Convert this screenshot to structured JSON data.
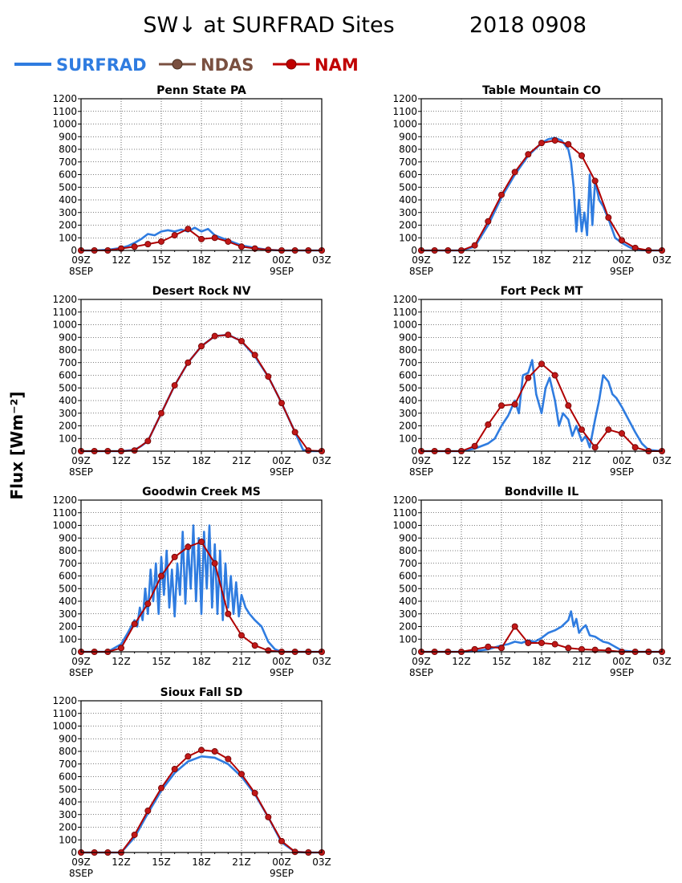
{
  "title": "SW↓ at SURFRAD Sites",
  "date": "2018 0908",
  "ylabel": "Flux [Wm⁻²]",
  "legend": [
    {
      "name": "SURFRAD",
      "color": "#2f7ce0",
      "marker": "none"
    },
    {
      "name": "NDAS",
      "color": "#7a5040",
      "marker": "circle"
    },
    {
      "name": "NAM",
      "color": "#c00000",
      "marker": "circle"
    }
  ],
  "colors": {
    "surfrad": "#2f7ce0",
    "nam": "#b00000",
    "nam_marker": "#c01818",
    "grid": "#000000"
  },
  "chart_data": [
    {
      "type": "line",
      "title": "Penn State PA",
      "x_tick_labels": [
        "09Z",
        "12Z",
        "15Z",
        "18Z",
        "21Z",
        "00Z",
        "03Z"
      ],
      "x_date_labels": [
        "8SEP",
        "9SEP"
      ],
      "y_ticks": [
        0,
        100,
        200,
        300,
        400,
        500,
        600,
        700,
        800,
        900,
        1000,
        1100,
        1200
      ],
      "xlim": [
        0,
        18
      ],
      "ylim": [
        0,
        1200
      ],
      "grid": true,
      "series": [
        {
          "name": "SURFRAD",
          "x": [
            0,
            1,
            2,
            3,
            3.5,
            4,
            4.5,
            5,
            5.5,
            6,
            6.5,
            7,
            7.5,
            8,
            8.5,
            9,
            9.5,
            10,
            10.5,
            11,
            11.5,
            12,
            13,
            14,
            15,
            16,
            17,
            18
          ],
          "y": [
            0,
            0,
            5,
            20,
            35,
            60,
            90,
            130,
            120,
            150,
            160,
            150,
            165,
            150,
            180,
            150,
            170,
            120,
            100,
            80,
            60,
            40,
            20,
            5,
            0,
            0,
            0,
            0
          ]
        },
        {
          "name": "NAM",
          "x": [
            0,
            1,
            2,
            3,
            4,
            5,
            6,
            7,
            8,
            9,
            10,
            11,
            12,
            13,
            14,
            15,
            16,
            17,
            18
          ],
          "y": [
            0,
            0,
            0,
            15,
            30,
            50,
            70,
            120,
            170,
            90,
            100,
            70,
            30,
            15,
            5,
            0,
            0,
            0,
            0
          ]
        }
      ]
    },
    {
      "type": "line",
      "title": "Table Mountain CO",
      "x_tick_labels": [
        "09Z",
        "12Z",
        "15Z",
        "18Z",
        "21Z",
        "00Z",
        "03Z"
      ],
      "x_date_labels": [
        "8SEP",
        "9SEP"
      ],
      "y_ticks": [
        0,
        100,
        200,
        300,
        400,
        500,
        600,
        700,
        800,
        900,
        1000,
        1100,
        1200
      ],
      "xlim": [
        0,
        18
      ],
      "ylim": [
        0,
        1200
      ],
      "grid": true,
      "series": [
        {
          "name": "SURFRAD",
          "x": [
            0,
            1,
            2,
            3,
            4,
            5,
            6,
            7,
            8,
            9,
            9.5,
            10,
            10.5,
            11,
            11.2,
            11.4,
            11.6,
            11.8,
            12,
            12.2,
            12.4,
            12.6,
            12.8,
            13,
            13.3,
            13.6,
            14,
            14.5,
            15,
            15.5,
            16,
            17,
            18
          ],
          "y": [
            0,
            0,
            0,
            0,
            30,
            200,
            420,
            600,
            750,
            850,
            880,
            890,
            870,
            800,
            700,
            500,
            150,
            400,
            150,
            300,
            120,
            600,
            200,
            550,
            400,
            350,
            250,
            100,
            60,
            30,
            5,
            0,
            0
          ]
        },
        {
          "name": "NAM",
          "x": [
            0,
            1,
            2,
            3,
            4,
            5,
            6,
            7,
            8,
            9,
            10,
            11,
            12,
            13,
            14,
            15,
            16,
            17,
            18
          ],
          "y": [
            0,
            0,
            0,
            0,
            40,
            230,
            440,
            620,
            760,
            850,
            870,
            840,
            750,
            550,
            260,
            80,
            20,
            0,
            0
          ]
        }
      ]
    },
    {
      "type": "line",
      "title": "Desert Rock NV",
      "x_tick_labels": [
        "09Z",
        "12Z",
        "15Z",
        "18Z",
        "21Z",
        "00Z",
        "03Z"
      ],
      "x_date_labels": [
        "8SEP",
        "9SEP"
      ],
      "y_ticks": [
        0,
        100,
        200,
        300,
        400,
        500,
        600,
        700,
        800,
        900,
        1000,
        1100,
        1200
      ],
      "xlim": [
        0,
        18
      ],
      "ylim": [
        0,
        1200
      ],
      "grid": true,
      "series": [
        {
          "name": "SURFRAD",
          "x": [
            0,
            1,
            2,
            3,
            4,
            4.5,
            5,
            6,
            7,
            8,
            9,
            10,
            11,
            12,
            13,
            14,
            15,
            16,
            16.3,
            16.6,
            17,
            18
          ],
          "y": [
            0,
            0,
            0,
            0,
            10,
            40,
            80,
            300,
            520,
            700,
            830,
            910,
            920,
            870,
            750,
            590,
            380,
            150,
            80,
            10,
            0,
            0
          ]
        },
        {
          "name": "NAM",
          "x": [
            0,
            1,
            2,
            3,
            4,
            5,
            6,
            7,
            8,
            9,
            10,
            11,
            12,
            13,
            14,
            15,
            16,
            17,
            18
          ],
          "y": [
            0,
            0,
            0,
            0,
            5,
            80,
            300,
            520,
            700,
            830,
            910,
            920,
            870,
            760,
            590,
            380,
            150,
            5,
            0
          ]
        }
      ]
    },
    {
      "type": "line",
      "title": "Fort Peck MT",
      "x_tick_labels": [
        "09Z",
        "12Z",
        "15Z",
        "18Z",
        "21Z",
        "00Z",
        "03Z"
      ],
      "x_date_labels": [
        "8SEP",
        "9SEP"
      ],
      "y_ticks": [
        0,
        100,
        200,
        300,
        400,
        500,
        600,
        700,
        800,
        900,
        1000,
        1100,
        1200
      ],
      "xlim": [
        0,
        18
      ],
      "ylim": [
        0,
        1200
      ],
      "grid": true,
      "series": [
        {
          "name": "SURFRAD",
          "x": [
            0,
            1,
            2,
            3,
            4,
            5,
            5.5,
            6,
            6.5,
            7,
            7.3,
            7.6,
            8,
            8.3,
            8.6,
            9,
            9.3,
            9.6,
            10,
            10.3,
            10.6,
            11,
            11.3,
            11.6,
            12,
            12.3,
            12.6,
            13,
            13.3,
            13.6,
            14,
            14.3,
            14.6,
            15,
            15.5,
            16,
            16.5,
            17,
            18
          ],
          "y": [
            0,
            0,
            0,
            0,
            20,
            60,
            100,
            200,
            280,
            400,
            300,
            600,
            620,
            720,
            450,
            300,
            500,
            580,
            400,
            200,
            300,
            250,
            120,
            200,
            80,
            120,
            30,
            250,
            400,
            600,
            550,
            450,
            420,
            350,
            250,
            150,
            60,
            10,
            0
          ]
        },
        {
          "name": "NAM",
          "x": [
            0,
            1,
            2,
            3,
            4,
            5,
            6,
            7,
            8,
            9,
            10,
            11,
            12,
            13,
            14,
            15,
            16,
            17,
            18
          ],
          "y": [
            0,
            0,
            0,
            0,
            40,
            210,
            360,
            370,
            580,
            690,
            600,
            360,
            170,
            30,
            170,
            140,
            30,
            0,
            0
          ]
        }
      ]
    },
    {
      "type": "line",
      "title": "Goodwin Creek MS",
      "x_tick_labels": [
        "09Z",
        "12Z",
        "15Z",
        "18Z",
        "21Z",
        "00Z",
        "03Z"
      ],
      "x_date_labels": [
        "8SEP",
        "9SEP"
      ],
      "y_ticks": [
        0,
        100,
        200,
        300,
        400,
        500,
        600,
        700,
        800,
        900,
        1000,
        1100,
        1200
      ],
      "xlim": [
        0,
        18
      ],
      "ylim": [
        0,
        1200
      ],
      "grid": true,
      "series": [
        {
          "name": "SURFRAD",
          "x": [
            0,
            1,
            2,
            3,
            3.5,
            4,
            4.2,
            4.4,
            4.6,
            4.8,
            5,
            5.2,
            5.4,
            5.6,
            5.8,
            6,
            6.2,
            6.4,
            6.6,
            6.8,
            7,
            7.2,
            7.4,
            7.6,
            7.8,
            8,
            8.2,
            8.4,
            8.6,
            8.8,
            9,
            9.2,
            9.4,
            9.6,
            9.8,
            10,
            10.2,
            10.4,
            10.6,
            10.8,
            11,
            11.2,
            11.4,
            11.6,
            11.8,
            12,
            12.3,
            12.6,
            13,
            13.5,
            14,
            14.5,
            15,
            16,
            17,
            18
          ],
          "y": [
            0,
            0,
            0,
            60,
            150,
            250,
            200,
            350,
            250,
            500,
            300,
            650,
            400,
            700,
            300,
            750,
            450,
            800,
            350,
            650,
            280,
            700,
            450,
            950,
            380,
            850,
            500,
            1000,
            400,
            900,
            300,
            950,
            500,
            1000,
            350,
            850,
            300,
            800,
            250,
            700,
            350,
            600,
            300,
            550,
            280,
            450,
            350,
            300,
            250,
            200,
            80,
            20,
            0,
            0,
            0,
            0
          ]
        },
        {
          "name": "NAM",
          "x": [
            0,
            1,
            2,
            3,
            4,
            5,
            6,
            7,
            8,
            9,
            10,
            11,
            12,
            13,
            14,
            15,
            16,
            17,
            18
          ],
          "y": [
            0,
            0,
            0,
            30,
            220,
            380,
            600,
            750,
            830,
            870,
            700,
            300,
            130,
            50,
            10,
            0,
            0,
            0,
            0
          ]
        }
      ]
    },
    {
      "type": "line",
      "title": "Bondville IL",
      "x_tick_labels": [
        "09Z",
        "12Z",
        "15Z",
        "18Z",
        "21Z",
        "00Z",
        "03Z"
      ],
      "x_date_labels": [
        "8SEP",
        "9SEP"
      ],
      "y_ticks": [
        0,
        100,
        200,
        300,
        400,
        500,
        600,
        700,
        800,
        900,
        1000,
        1100,
        1200
      ],
      "xlim": [
        0,
        18
      ],
      "ylim": [
        0,
        1200
      ],
      "grid": true,
      "series": [
        {
          "name": "SURFRAD",
          "x": [
            0,
            1,
            2,
            3,
            4,
            5,
            6,
            6.5,
            7,
            7.5,
            8,
            8.5,
            9,
            9.5,
            10,
            10.5,
            11,
            11.2,
            11.4,
            11.6,
            11.8,
            12,
            12.3,
            12.6,
            13,
            13.3,
            13.6,
            14,
            14.5,
            15,
            16,
            17,
            18
          ],
          "y": [
            0,
            0,
            0,
            0,
            5,
            20,
            50,
            60,
            80,
            70,
            90,
            80,
            110,
            150,
            170,
            200,
            250,
            320,
            200,
            260,
            150,
            180,
            210,
            130,
            120,
            100,
            80,
            70,
            40,
            10,
            0,
            0,
            0
          ]
        },
        {
          "name": "NAM",
          "x": [
            0,
            1,
            2,
            3,
            4,
            5,
            6,
            7,
            8,
            9,
            10,
            11,
            12,
            13,
            14,
            15,
            16,
            17,
            18
          ],
          "y": [
            0,
            0,
            0,
            0,
            20,
            40,
            30,
            200,
            70,
            70,
            60,
            30,
            20,
            15,
            10,
            0,
            0,
            0,
            0
          ]
        }
      ]
    },
    {
      "type": "line",
      "title": "Sioux Fall SD",
      "x_tick_labels": [
        "09Z",
        "12Z",
        "15Z",
        "18Z",
        "21Z",
        "00Z",
        "03Z"
      ],
      "x_date_labels": [
        "8SEP",
        "9SEP"
      ],
      "y_ticks": [
        0,
        100,
        200,
        300,
        400,
        500,
        600,
        700,
        800,
        900,
        1000,
        1100,
        1200
      ],
      "xlim": [
        0,
        18
      ],
      "ylim": [
        0,
        1200
      ],
      "grid": true,
      "series": [
        {
          "name": "SURFRAD",
          "x": [
            0,
            1,
            2,
            3,
            4,
            5,
            6,
            7,
            8,
            9,
            10,
            11,
            12,
            13,
            14,
            15,
            16,
            17,
            18
          ],
          "y": [
            0,
            0,
            0,
            0,
            120,
            310,
            490,
            630,
            720,
            760,
            750,
            700,
            600,
            460,
            280,
            80,
            5,
            0,
            0
          ]
        },
        {
          "name": "NAM",
          "x": [
            0,
            1,
            2,
            3,
            4,
            5,
            6,
            7,
            8,
            9,
            10,
            11,
            12,
            13,
            14,
            15,
            16,
            17,
            18
          ],
          "y": [
            0,
            0,
            0,
            0,
            140,
            330,
            510,
            660,
            760,
            810,
            800,
            740,
            620,
            470,
            280,
            90,
            5,
            0,
            0
          ]
        }
      ]
    }
  ]
}
